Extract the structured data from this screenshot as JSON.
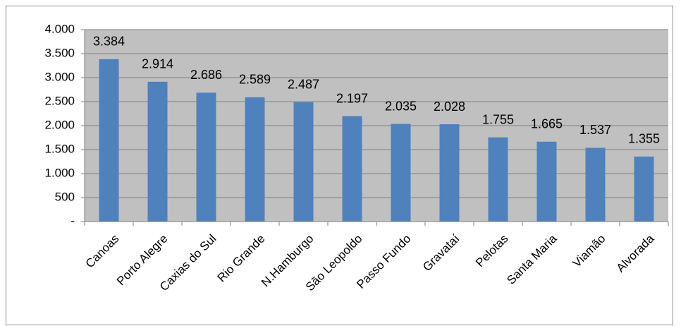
{
  "chart_data": {
    "type": "bar",
    "categories": [
      "Canoas",
      "Porto Alegre",
      "Caxias do Sul",
      "Rio Grande",
      "N.Hamburgo",
      "São Leopoldo",
      "Passo Fundo",
      "Gravataí",
      "Pelotas",
      "Santa Maria",
      "Viamão",
      "Alvorada"
    ],
    "values": [
      3384,
      2914,
      2686,
      2589,
      2487,
      2197,
      2035,
      2028,
      1755,
      1665,
      1537,
      1355
    ],
    "value_labels": [
      "3.384",
      "2.914",
      "2.686",
      "2.589",
      "2.487",
      "2.197",
      "2.035",
      "2.028",
      "1.755",
      "1.665",
      "1.537",
      "1.355"
    ],
    "color": "#4f81bd",
    "ylim": [
      0,
      4000
    ],
    "yticks": [
      {
        "value": 0,
        "label": "-"
      },
      {
        "value": 500,
        "label": "500"
      },
      {
        "value": 1000,
        "label": "1.000"
      },
      {
        "value": 1500,
        "label": "1.500"
      },
      {
        "value": 2000,
        "label": "2.000"
      },
      {
        "value": 2500,
        "label": "2.500"
      },
      {
        "value": 3000,
        "label": "3.000"
      },
      {
        "value": 3500,
        "label": "3.500"
      },
      {
        "value": 4000,
        "label": "4.000"
      }
    ],
    "grid": true
  }
}
